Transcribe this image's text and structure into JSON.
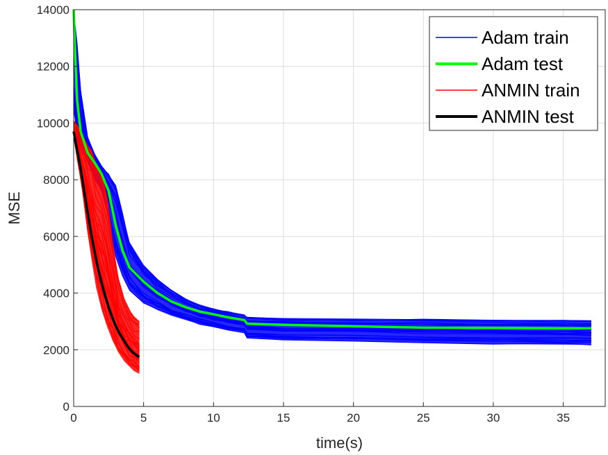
{
  "chart_data": {
    "type": "line",
    "title": "",
    "xlabel": "time(s)",
    "ylabel": "MSE",
    "xlim": [
      0,
      38
    ],
    "ylim": [
      0,
      14000
    ],
    "xticks": [
      0,
      5,
      10,
      15,
      20,
      25,
      30,
      35
    ],
    "yticks": [
      0,
      2000,
      4000,
      6000,
      8000,
      10000,
      12000,
      14000
    ],
    "grid": true,
    "legend_position": "top-right",
    "series": [
      {
        "name": "Adam train",
        "color": "#0000ff",
        "role": "train_ensemble",
        "x": [
          0,
          0.25,
          0.5,
          1,
          1.5,
          2,
          2.5,
          3,
          3.5,
          4,
          5,
          6,
          7,
          8,
          9,
          10,
          11,
          12.2,
          12.4,
          15,
          20,
          25,
          30,
          35,
          37
        ],
        "band_low": [
          10500,
          9500,
          9100,
          8600,
          8000,
          7600,
          6600,
          5300,
          4600,
          4100,
          3650,
          3400,
          3200,
          3050,
          2900,
          2800,
          2700,
          2600,
          2400,
          2350,
          2300,
          2250,
          2200,
          2180,
          2170
        ],
        "band_high": [
          14000,
          12800,
          11200,
          9500,
          8900,
          8500,
          8200,
          7800,
          6800,
          5800,
          5000,
          4500,
          4100,
          3800,
          3600,
          3450,
          3350,
          3250,
          3150,
          3120,
          3100,
          3080,
          3060,
          3050,
          3040
        ]
      },
      {
        "name": "Adam test",
        "color": "#00ff00",
        "role": "test_mean",
        "x": [
          0,
          0.1,
          0.25,
          0.5,
          1,
          1.5,
          2,
          2.5,
          3,
          3.5,
          4,
          5,
          6,
          7,
          8,
          9,
          10,
          11,
          12.2,
          12.4,
          15,
          20,
          25,
          30,
          35,
          37
        ],
        "values": [
          14000,
          12500,
          10800,
          9700,
          8950,
          8600,
          8200,
          7600,
          6400,
          5500,
          4900,
          4400,
          4000,
          3700,
          3500,
          3350,
          3250,
          3150,
          3050,
          2920,
          2880,
          2830,
          2780,
          2770,
          2760,
          2760
        ]
      },
      {
        "name": "ANMIN train",
        "color": "#ff0000",
        "role": "train_ensemble",
        "x": [
          0,
          0.3,
          0.6,
          1,
          1.3,
          1.6,
          2,
          2.4,
          2.8,
          3.2,
          3.6,
          4,
          4.3,
          4.7
        ],
        "band_low": [
          9500,
          8600,
          7600,
          6100,
          5100,
          4200,
          3400,
          2800,
          2300,
          1900,
          1600,
          1400,
          1250,
          1150
        ],
        "band_high": [
          10100,
          9900,
          9600,
          9200,
          9000,
          8600,
          8300,
          7400,
          5800,
          4500,
          3800,
          3400,
          3200,
          3000
        ]
      },
      {
        "name": "ANMIN test",
        "color": "#000000",
        "role": "test_mean",
        "x": [
          0,
          0.25,
          0.5,
          0.75,
          1,
          1.25,
          1.5,
          1.75,
          2,
          2.25,
          2.5,
          2.75,
          3,
          3.25,
          3.5,
          3.75,
          4,
          4.25,
          4.5,
          4.7
        ],
        "values": [
          9700,
          9050,
          8400,
          7600,
          6850,
          6100,
          5450,
          4850,
          4350,
          3900,
          3500,
          3150,
          2850,
          2600,
          2400,
          2200,
          2030,
          1900,
          1800,
          1750
        ]
      }
    ]
  }
}
